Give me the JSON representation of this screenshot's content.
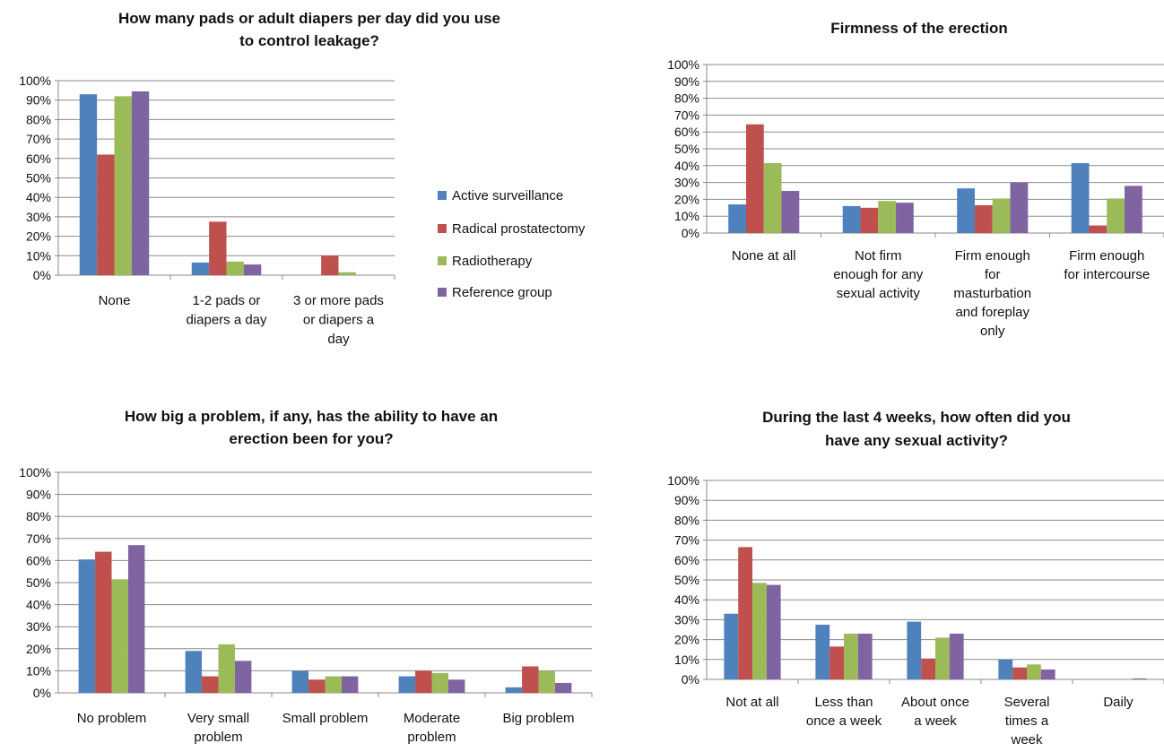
{
  "colors": {
    "Active surveillance": "#4F81BD",
    "Radical prostatectomy": "#C0504D",
    "Radiotherapy": "#9BBB59",
    "Reference group": "#8064A2"
  },
  "legend": {
    "items": [
      "Active surveillance",
      "Radical prostatectomy",
      "Radiotherapy",
      "Reference group"
    ]
  },
  "chart_data": [
    {
      "type": "bar",
      "title": [
        "How many pads or adult diapers per day did you use",
        "to control leakage?"
      ],
      "categories": [
        [
          "None"
        ],
        [
          "1-2 pads or",
          "diapers a day"
        ],
        [
          "3 or more pads",
          "or diapers a",
          "day"
        ]
      ],
      "ylim": [
        0,
        100
      ],
      "yticks": [
        "0%",
        "10%",
        "20%",
        "30%",
        "40%",
        "50%",
        "60%",
        "70%",
        "80%",
        "90%",
        "100%"
      ],
      "grid": true,
      "series": [
        {
          "name": "Active surveillance",
          "values": [
            93,
            6.5,
            0
          ]
        },
        {
          "name": "Radical prostatectomy",
          "values": [
            62,
            27.5,
            10
          ]
        },
        {
          "name": "Radiotherapy",
          "values": [
            92,
            7,
            1.5
          ]
        },
        {
          "name": "Reference group",
          "values": [
            94.5,
            5.5,
            0
          ]
        }
      ]
    },
    {
      "type": "bar",
      "title": [
        "Firmness of the erection"
      ],
      "categories": [
        [
          "None at all"
        ],
        [
          "Not firm",
          "enough for any",
          "sexual activity"
        ],
        [
          "Firm enough",
          "for",
          "masturbation",
          "and foreplay",
          "only"
        ],
        [
          "Firm enough",
          "for intercourse"
        ]
      ],
      "ylim": [
        0,
        100
      ],
      "yticks": [
        "0%",
        "10%",
        "20%",
        "30%",
        "40%",
        "50%",
        "60%",
        "70%",
        "80%",
        "90%",
        "100%"
      ],
      "grid": true,
      "series": [
        {
          "name": "Active surveillance",
          "values": [
            17,
            16,
            26.5,
            41.5
          ]
        },
        {
          "name": "Radical prostatectomy",
          "values": [
            64.5,
            15,
            16.5,
            4.5
          ]
        },
        {
          "name": "Radiotherapy",
          "values": [
            41.5,
            19,
            20.5,
            20.5
          ]
        },
        {
          "name": "Reference group",
          "values": [
            25,
            18,
            30,
            28
          ]
        }
      ]
    },
    {
      "type": "bar",
      "title": [
        "How big a problem, if any, has the ability to have an",
        "erection been for you?"
      ],
      "categories": [
        [
          "No problem"
        ],
        [
          "Very small",
          "problem"
        ],
        [
          "Small problem"
        ],
        [
          "Moderate",
          "problem"
        ],
        [
          "Big problem"
        ]
      ],
      "ylim": [
        0,
        100
      ],
      "yticks": [
        "0%",
        "10%",
        "20%",
        "30%",
        "40%",
        "50%",
        "60%",
        "70%",
        "80%",
        "90%",
        "100%"
      ],
      "grid": true,
      "series": [
        {
          "name": "Active surveillance",
          "values": [
            60.5,
            19,
            10,
            7.5,
            2.5
          ]
        },
        {
          "name": "Radical prostatectomy",
          "values": [
            64,
            7.5,
            6,
            10,
            12
          ]
        },
        {
          "name": "Radiotherapy",
          "values": [
            51.5,
            22,
            7.5,
            9,
            10
          ]
        },
        {
          "name": "Reference group",
          "values": [
            67,
            14.5,
            7.5,
            6,
            4.5
          ]
        }
      ]
    },
    {
      "type": "bar",
      "title": [
        "During the last 4 weeks, how often did you",
        "have any sexual activity?"
      ],
      "categories": [
        [
          "Not at all"
        ],
        [
          "Less than",
          "once a week"
        ],
        [
          "About once",
          "a week"
        ],
        [
          "Several",
          "times a",
          "week"
        ],
        [
          "Daily"
        ]
      ],
      "ylim": [
        0,
        100
      ],
      "yticks": [
        "0%",
        "10%",
        "20%",
        "30%",
        "40%",
        "50%",
        "60%",
        "70%",
        "80%",
        "90%",
        "100%"
      ],
      "grid": true,
      "series": [
        {
          "name": "Active surveillance",
          "values": [
            33,
            27.5,
            29,
            10,
            0
          ]
        },
        {
          "name": "Radical prostatectomy",
          "values": [
            66.5,
            16.5,
            10.5,
            6,
            0
          ]
        },
        {
          "name": "Radiotherapy",
          "values": [
            48.5,
            23,
            21,
            7.5,
            0
          ]
        },
        {
          "name": "Reference group",
          "values": [
            47.5,
            23,
            23,
            5,
            0.5
          ]
        }
      ]
    }
  ]
}
